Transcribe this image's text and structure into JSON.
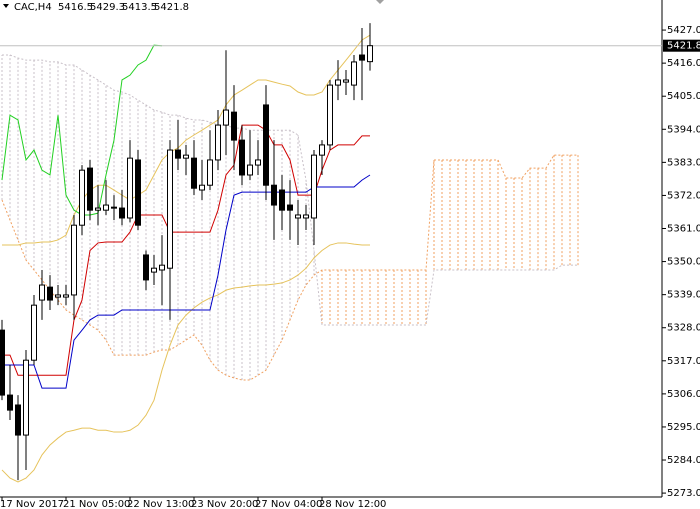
{
  "chart_data": {
    "type": "candlestick",
    "title": "CAC,H4",
    "categories": [
      "17 Nov 2017",
      null,
      null,
      null,
      null,
      null,
      null,
      null,
      "21 Nov 05:00",
      null,
      null,
      null,
      null,
      null,
      null,
      null,
      "22 Nov 13:00",
      null,
      null,
      null,
      null,
      null,
      null,
      null,
      "23 Nov 20:00",
      null,
      null,
      null,
      null,
      null,
      null,
      null,
      "27 Nov 04:00",
      null,
      null,
      null,
      null,
      null,
      null,
      null,
      "28 Nov 12:00",
      null,
      null,
      null,
      null,
      null,
      null
    ],
    "open": [
      5327.2,
      5305.6,
      5302.3,
      5292.3,
      5317.2,
      5337.2,
      5341.5,
      5338.2,
      5338.2,
      5338.9,
      5362.1,
      5381.1,
      5367.1,
      5367.1,
      5367.8,
      5367.8,
      5364.5,
      5383.8,
      5352.2,
      5346.5,
      5347.2,
      5347.8,
      5387.1,
      5384.4,
      5384.4,
      5373.8,
      5375.4,
      5383.8,
      5395.4,
      5399.7,
      5390.4,
      5378.8,
      5382.1,
      5402.1,
      5375.4,
      5373.8,
      5368.8,
      5364.5,
      5364.5,
      5364.5,
      5385.4,
      5388.8,
      5408.7,
      5409.7,
      5408.7,
      5418.7,
      5416.5
    ],
    "high": [
      5330.6,
      5315.6,
      5305.6,
      5320.6,
      5338.9,
      5347.2,
      5345.5,
      5342.2,
      5342.2,
      5365.5,
      5382.1,
      5383.8,
      5375.4,
      5377.1,
      5372.1,
      5373.8,
      5390.4,
      5387.1,
      5353.7,
      5352.2,
      5358.8,
      5390.4,
      5397.1,
      5388.8,
      5390.4,
      5383.8,
      5393.7,
      5400.4,
      5420.3,
      5408.7,
      5395.4,
      5393.7,
      5390.4,
      5408.7,
      5390.4,
      5378.8,
      5377.1,
      5370.5,
      5368.8,
      5387.1,
      5390.4,
      5410.4,
      5417.0,
      5413.7,
      5418.7,
      5427.7,
      5429.3
    ],
    "low": [
      5303.9,
      5297.3,
      5277.3,
      5280.7,
      5315.6,
      5330.6,
      5333.9,
      5335.5,
      5335.5,
      5330.6,
      5358.8,
      5363.8,
      5362.1,
      5365.5,
      5363.8,
      5362.1,
      5363.1,
      5360.5,
      5340.5,
      5342.2,
      5335.5,
      5330.6,
      5380.4,
      5378.8,
      5372.1,
      5370.5,
      5373.8,
      5380.4,
      5385.4,
      5380.4,
      5375.4,
      5377.1,
      5378.8,
      5370.5,
      5357.2,
      5360.5,
      5357.2,
      5355.5,
      5360.5,
      5355.5,
      5378.8,
      5387.1,
      5403.7,
      5405.4,
      5403.7,
      5403.7,
      5413.5
    ],
    "close": [
      5305.6,
      5300.6,
      5292.3,
      5317.2,
      5335.5,
      5342.2,
      5337.2,
      5338.9,
      5338.9,
      5362.1,
      5380.4,
      5367.1,
      5367.8,
      5368.8,
      5368.1,
      5364.5,
      5384.4,
      5362.1,
      5343.9,
      5347.8,
      5348.8,
      5387.1,
      5384.4,
      5385.4,
      5374.4,
      5375.4,
      5383.8,
      5395.4,
      5400.4,
      5390.4,
      5378.8,
      5382.1,
      5383.8,
      5375.4,
      5368.8,
      5367.1,
      5367.1,
      5365.5,
      5365.5,
      5385.4,
      5388.8,
      5408.7,
      5410.4,
      5410.4,
      5416.4,
      5417.0,
      5421.8
    ],
    "up_color": "#ffffff",
    "down_color": "#000000",
    "lines": [
      {
        "color": "#e6c35c",
        "values": [
          5355.5,
          5355.5,
          5355.5,
          5356.2,
          5356.2,
          5356.5,
          5356.5,
          5357.2,
          5358.8,
          5365.5,
          5370.5,
          5373.8,
          5375.4,
          5375.4,
          5373.8,
          5372.1,
          5370.5,
          5372.1,
          5373.8,
          5378.8,
          5383.8,
          5386.4,
          5387.8,
          5390.4,
          5392.1,
          5393.7,
          5395.4,
          5397.1,
          5402.1,
          5405.4,
          5407.0,
          5408.7,
          5410.4,
          5410.4,
          5409.7,
          5409.0,
          5408.4,
          5406.4,
          5405.4,
          5405.4,
          5406.4,
          5410.4,
          5413.7,
          5417.0,
          5420.3,
          5423.7,
          5425.3
        ]
      },
      {
        "color": "#e6c35c",
        "values": [
          5280.7,
          5278.0,
          5276.7,
          5278.0,
          5280.7,
          5285.7,
          5289.0,
          5291.3,
          5293.3,
          5293.9,
          5294.6,
          5294.6,
          5293.9,
          5293.9,
          5293.3,
          5293.3,
          5293.9,
          5295.6,
          5298.9,
          5303.9,
          5313.9,
          5322.2,
          5328.9,
          5332.2,
          5334.6,
          5336.5,
          5337.9,
          5338.9,
          5340.5,
          5341.2,
          5341.5,
          5341.9,
          5342.2,
          5342.2,
          5342.5,
          5342.9,
          5343.9,
          5345.5,
          5347.8,
          5351.2,
          5353.7,
          5355.5,
          5356.2,
          5356.2,
          5355.8,
          5355.5,
          5355.5
        ]
      },
      {
        "color": "#d00000",
        "values": [
          5318.9,
          5318.9,
          5312.2,
          5312.2,
          5312.2,
          5312.2,
          5312.2,
          5312.2,
          5312.2,
          5330.6,
          5337.2,
          5353.7,
          5356.2,
          5356.5,
          5356.5,
          5356.5,
          5359.8,
          5365.5,
          5365.5,
          5365.5,
          5365.5,
          5359.8,
          5359.8,
          5359.8,
          5359.8,
          5359.8,
          5359.8,
          5367.1,
          5378.8,
          5382.1,
          5395.4,
          5395.4,
          5395.4,
          5393.7,
          5388.8,
          5388.8,
          5383.8,
          5372.1,
          5372.1,
          5372.1,
          5380.4,
          5387.1,
          5388.8,
          5388.8,
          5388.8,
          5391.8,
          5391.8
        ]
      },
      {
        "color": "#0000c8",
        "values": [
          5315.6,
          5315.6,
          5315.6,
          5315.6,
          5315.6,
          5307.9,
          5307.9,
          5307.9,
          5307.9,
          5323.9,
          5327.2,
          5330.6,
          5332.2,
          5332.2,
          5332.2,
          5333.9,
          5333.9,
          5333.9,
          5333.9,
          5333.9,
          5333.9,
          5333.9,
          5333.9,
          5333.9,
          5333.9,
          5333.9,
          5333.9,
          5345.5,
          5360.5,
          5372.1,
          5373.1,
          5373.1,
          5373.1,
          5373.1,
          5373.1,
          5373.1,
          5373.1,
          5373.1,
          5373.1,
          5374.8,
          5374.8,
          5374.8,
          5374.8,
          5374.8,
          5374.8,
          5377.1,
          5378.8
        ]
      },
      {
        "color": "#22d022",
        "values": [
          5377.1,
          5398.7,
          5397.1,
          5383.8,
          5387.1,
          5380.4,
          5378.8,
          5398.7,
          5372.1,
          5367.1,
          5365.5,
          5365.5,
          5366.1,
          5378.8,
          5390.4,
          5410.4,
          5412.0,
          5415.4,
          5417.0,
          5422.0,
          5421.8
        ]
      }
    ],
    "cloud": {
      "up_color": "#f0a060",
      "down_color": "#c8c0c8",
      "span_a": [
        5370.5,
        5363.8,
        5357.2,
        5350.5,
        5347.2,
        5343.9,
        5340.5,
        5337.2,
        5333.9,
        5332.2,
        5330.6,
        5328.9,
        5327.2,
        5323.9,
        5318.9,
        5318.9,
        5318.9,
        5318.9,
        5318.9,
        5319.9,
        5320.6,
        5320.6,
        5322.2,
        5323.9,
        5325.6,
        5322.2,
        5317.2,
        5313.9,
        5312.2,
        5311.3,
        5310.6,
        5310.6,
        5312.2,
        5313.9,
        5318.9,
        5323.9,
        5330.6,
        5337.2,
        5342.2,
        5345.5,
        5347.2,
        5347.2,
        5347.2,
        5347.2,
        5347.2,
        5347.2,
        5347.2,
        5347.2,
        5347.2,
        5347.2,
        5347.2,
        5347.2,
        5347.2,
        5347.2,
        5383.8,
        5383.8,
        5383.8,
        5383.8,
        5383.8,
        5383.8,
        5383.8,
        5383.8,
        5383.8,
        5377.8,
        5377.8,
        5377.8,
        5381.1,
        5381.1,
        5381.1,
        5385.4,
        5385.4,
        5385.4,
        5385.4
      ],
      "span_b": [
        5418.7,
        5418.7,
        5417.7,
        5417.0,
        5417.0,
        5417.0,
        5416.4,
        5416.4,
        5415.4,
        5415.4,
        5413.7,
        5412.0,
        5410.4,
        5408.7,
        5407.0,
        5406.4,
        5405.4,
        5403.7,
        5402.1,
        5400.4,
        5399.7,
        5398.7,
        5398.7,
        5397.7,
        5397.1,
        5397.1,
        5396.4,
        5395.4,
        5395.4,
        5394.4,
        5394.4,
        5393.7,
        5393.7,
        5393.7,
        5393.7,
        5393.7,
        5393.7,
        5392.1,
        5377.1,
        5353.7,
        5328.9,
        5328.9,
        5328.9,
        5328.9,
        5328.9,
        5328.9,
        5328.9,
        5328.9,
        5328.9,
        5328.9,
        5328.9,
        5328.9,
        5328.9,
        5328.9,
        5347.2,
        5347.2,
        5347.2,
        5347.2,
        5347.2,
        5347.2,
        5347.2,
        5347.2,
        5347.2,
        5347.2,
        5347.2,
        5347.2,
        5347.2,
        5347.2,
        5347.2,
        5347.2,
        5348.8,
        5348.8,
        5348.8
      ]
    },
    "ylim": [
      5271.7,
      5437.0
    ],
    "yticks": [
      {
        "value": 5273,
        "label": "5273.0"
      },
      {
        "value": 5284,
        "label": "5284.0"
      },
      {
        "value": 5295,
        "label": "5295.0"
      },
      {
        "value": 5306,
        "label": "5306.0"
      },
      {
        "value": 5317,
        "label": "5317.0"
      },
      {
        "value": 5328,
        "label": "5328.0"
      },
      {
        "value": 5339,
        "label": "5339.0"
      },
      {
        "value": 5350,
        "label": "5350.0"
      },
      {
        "value": 5361,
        "label": "5361.0"
      },
      {
        "value": 5372,
        "label": "5372.0"
      },
      {
        "value": 5383,
        "label": "5383.0"
      },
      {
        "value": 5394,
        "label": "5394.0"
      },
      {
        "value": 5405,
        "label": "5405.0"
      },
      {
        "value": 5416,
        "label": "5416.0"
      },
      {
        "value": 5427,
        "label": "5427.0"
      }
    ],
    "grid": false
  }
}
